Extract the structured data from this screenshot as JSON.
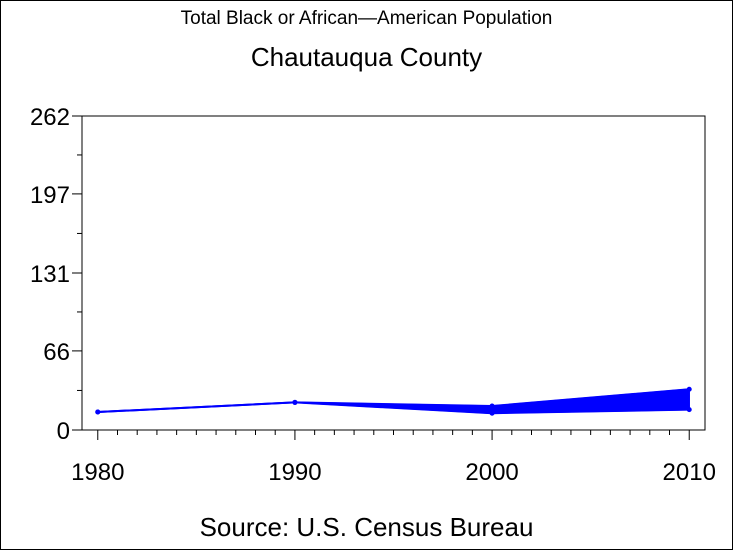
{
  "title": "Total Black or African—American Population",
  "subtitle": "Chautauqua County",
  "source": "Source: U.S. Census Bureau",
  "chart_data": {
    "type": "line",
    "title": "Total Black or African—American Population",
    "subtitle": "Chautauqua County",
    "xlabel": "",
    "ylabel": "",
    "x": [
      1980,
      1990,
      2000,
      2010
    ],
    "xlim": [
      1979.2,
      2010.8
    ],
    "ylim": [
      0,
      262
    ],
    "xticks": [
      "1980",
      "1990",
      "2000",
      "2010"
    ],
    "yticks": [
      "0",
      "66",
      "131",
      "197",
      "262"
    ],
    "ytick_values": [
      0,
      66,
      131,
      197,
      262
    ],
    "series": [
      {
        "values": [
          15,
          23,
          20,
          34
        ]
      },
      {
        "values": [
          15,
          23,
          14,
          17
        ]
      }
    ],
    "band_between_series": true,
    "grid": false,
    "legend": "none",
    "color": "#0000ff"
  }
}
